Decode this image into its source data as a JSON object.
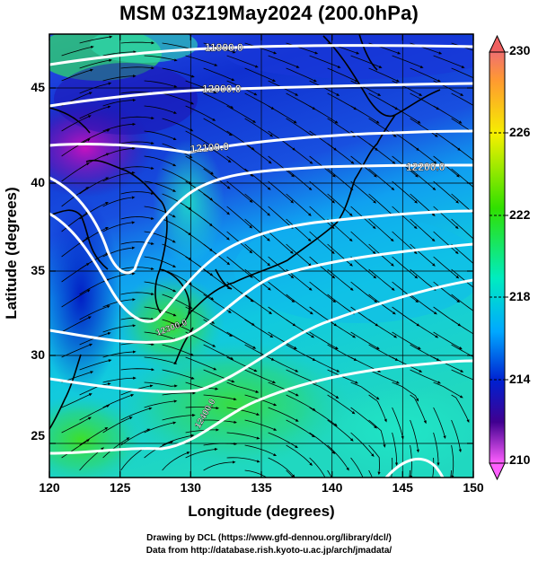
{
  "title": "MSM 03Z19May2024 (200.0hPa)",
  "xlabel": "Longitude (degrees)",
  "ylabel": "Latitude  (degrees)",
  "x_ticks": [
    "120",
    "125",
    "130",
    "135",
    "140",
    "145",
    "150"
  ],
  "y_ticks": [
    "25",
    "30",
    "35",
    "40",
    "45"
  ],
  "colorbar_ticks": [
    "230",
    "226",
    "222",
    "218",
    "214",
    "210"
  ],
  "colorbar_colors": [
    "#f07070",
    "#ffa030",
    "#f0f000",
    "#30e000",
    "#00f0b0",
    "#00b0ff",
    "#0020d0",
    "#400090",
    "#c000c0",
    "#ff60ff"
  ],
  "contour_labels": [
    "11900.0",
    "12000.0",
    "12100.0",
    "12200.0",
    "12300.0",
    "12400.0"
  ],
  "credit_line1": "Drawing by DCL (https://www.gfd-dennou.org/library/dcl/)",
  "credit_line2": "Data from http://database.rish.kyoto-u.ac.jp/arch/jmadata/",
  "map_data": {
    "projection": "equirectangular",
    "lon_range": [
      120,
      150
    ],
    "lat_range": [
      22.4,
      47.6
    ],
    "field": "temperature (shaded) with geopotential height contours and wind streamlines",
    "level": "200.0hPa",
    "colorbar_range": [
      210,
      230
    ]
  }
}
